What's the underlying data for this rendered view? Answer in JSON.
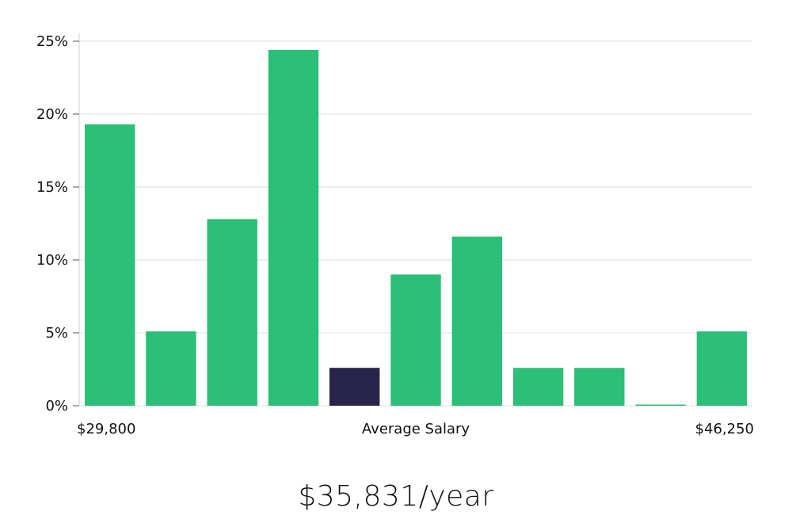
{
  "chart_data": {
    "type": "bar",
    "title": "",
    "ylabel": "",
    "xlabel": "Average Salary",
    "ylim": [
      0,
      25
    ],
    "yticks": [
      0,
      5,
      10,
      15,
      20,
      25
    ],
    "ytick_labels": [
      "0%",
      "5%",
      "10%",
      "15%",
      "20%",
      "25%"
    ],
    "x_left_label": "$29,800",
    "x_right_label": "$46,250",
    "values": [
      19.3,
      5.1,
      12.8,
      24.4,
      2.6,
      9.0,
      11.6,
      2.6,
      2.6,
      0.05,
      5.1
    ],
    "highlight_index": 4,
    "colors": {
      "bar": "#2bbf77",
      "highlight": "#29244a",
      "grid": "#dddddd",
      "axis": "#cccccc"
    },
    "grid": true
  },
  "salary_text": "$35,831/year"
}
